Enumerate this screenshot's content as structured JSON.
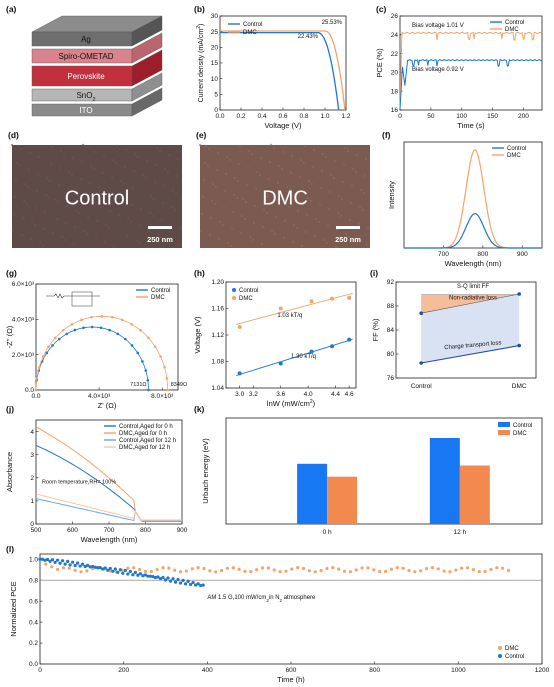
{
  "colors": {
    "control": "#1f77d0",
    "dmc": "#f4a46a",
    "urbach_control": "#1877f2",
    "urbach_dmc": "#f28a4f"
  },
  "panels": {
    "a": {
      "label": "(a)",
      "layers": [
        "Ag",
        "Spiro-OMETAD",
        "Perovskite",
        "SnO",
        "ITO"
      ],
      "sno_sub": "2"
    },
    "d": {
      "label": "(d)",
      "title": "Control",
      "scale": "250 nm"
    },
    "e": {
      "label": "(e)",
      "title": "DMC",
      "scale": "250 nm"
    }
  },
  "chart_data": [
    {
      "id": "b",
      "type": "line",
      "label": "(b)",
      "xlabel": "Voltage (V)",
      "ylabel": "Current density (mA/cm",
      "ylabel_sup": "2",
      ")": ")",
      "xlim": [
        0,
        1.2
      ],
      "ylim": [
        0,
        30
      ],
      "xticks": [
        "0.0",
        "0.2",
        "0.4",
        "0.6",
        "0.8",
        "1.0",
        "1.2"
      ],
      "yticks": [
        "0",
        "5",
        "10",
        "15",
        "20",
        "25",
        "30"
      ],
      "legend": [
        "Control",
        "DMC"
      ],
      "annotations": [
        "25.53%",
        "22.43%"
      ],
      "series": [
        {
          "name": "Control",
          "jsc": 24.7,
          "voc": 1.13,
          "knee": 0.93
        },
        {
          "name": "DMC",
          "jsc": 25.2,
          "voc": 1.19,
          "knee": 1.0
        }
      ]
    },
    {
      "id": "c",
      "type": "line",
      "label": "(c)",
      "xlabel": "Time (s)",
      "ylabel": "PCE (%)",
      "xlim": [
        0,
        230
      ],
      "ylim": [
        16,
        26
      ],
      "xticks": [
        "0",
        "50",
        "100",
        "150",
        "200"
      ],
      "yticks": [
        "16",
        "18",
        "20",
        "22",
        "24",
        "26"
      ],
      "legend": [
        "Control",
        "DMC"
      ],
      "annotations": [
        "Bias voltage 1.01 V",
        "Bias voltage 0.92 V"
      ],
      "series": [
        {
          "name": "Control",
          "steady": 21.3
        },
        {
          "name": "DMC",
          "steady": 24.2
        }
      ]
    },
    {
      "id": "f",
      "type": "line",
      "label": "(f)",
      "xlabel": "Wavelength (nm)",
      "ylabel": "Intensity",
      "xlim": [
        600,
        950
      ],
      "xticks": [
        "700",
        "800",
        "900"
      ],
      "legend": [
        "Control",
        "DMC"
      ],
      "series": [
        {
          "name": "Control",
          "peak": 780,
          "height": 0.35
        },
        {
          "name": "DMC",
          "peak": 780,
          "height": 1.0
        }
      ]
    },
    {
      "id": "g",
      "type": "scatter",
      "label": "(g)",
      "xlabel": "Z' (Ω)",
      "ylabel": "-Z'' (Ω)",
      "xlim": [
        0,
        9000
      ],
      "ylim": [
        0,
        6000
      ],
      "xticks": [
        "0.0",
        "4.0×10³",
        "8.0×10³"
      ],
      "yticks": [
        "0.0",
        "2.0×10³",
        "4.0×10³",
        "6.0×10³"
      ],
      "legend": [
        "Control",
        "DMC"
      ],
      "annotations": [
        "7131Ω",
        "8349Ω"
      ],
      "series": [
        {
          "name": "Control",
          "r": 7131
        },
        {
          "name": "DMC",
          "r": 8349
        }
      ]
    },
    {
      "id": "h",
      "type": "scatter",
      "label": "(h)",
      "xlabel": "lnW (mW/cm",
      "xlabel_sup": "2",
      "ylabel": "Voltage (V)",
      "xlim": [
        2.8,
        4.7
      ],
      "ylim": [
        1.04,
        1.2
      ],
      "xticks": [
        "3.0",
        "3.2",
        "3.6",
        "4.0",
        "4.4",
        "4.6"
      ],
      "yticks": [
        "1.04",
        "1.08",
        "1.12",
        "1.16",
        "1.20"
      ],
      "legend": [
        "Control",
        "DMC"
      ],
      "annotations": [
        "1.03 kT/q",
        "1.30 kT/q"
      ],
      "series": [
        {
          "name": "Control",
          "x": [
            3.0,
            3.6,
            4.05,
            4.35,
            4.6
          ],
          "y": [
            1.062,
            1.077,
            1.095,
            1.103,
            1.113
          ]
        },
        {
          "name": "DMC",
          "x": [
            3.0,
            3.6,
            4.05,
            4.35,
            4.6
          ],
          "y": [
            1.132,
            1.16,
            1.171,
            1.175,
            1.176
          ]
        }
      ]
    },
    {
      "id": "i",
      "type": "line",
      "label": "(i)",
      "xlabel": "",
      "ylabel": "FF (%)",
      "ylim": [
        76,
        92
      ],
      "yticks": [
        "76",
        "80",
        "84",
        "88",
        "92"
      ],
      "categories": [
        "Control",
        "DMC"
      ],
      "annotations": [
        "S-Q limit FF",
        "Non-radiative loss",
        "Charge transport loss"
      ],
      "series": [
        {
          "name": "S-Q limit FF",
          "values": [
            89.9,
            89.9
          ]
        },
        {
          "name": "upper",
          "values": [
            86.8,
            90.0
          ]
        },
        {
          "name": "measured",
          "values": [
            78.5,
            81.4
          ]
        }
      ]
    },
    {
      "id": "j",
      "type": "line",
      "label": "(j)",
      "xlabel": "Wavelength (nm)",
      "ylabel": "Absorbance",
      "xlim": [
        500,
        900
      ],
      "ylim": [
        0,
        4.5
      ],
      "xticks": [
        "500",
        "600",
        "700",
        "800",
        "900"
      ],
      "yticks": [
        "0",
        "1",
        "2",
        "3",
        "4"
      ],
      "legend": [
        "Control,Aged for 0 h",
        "DMC,Aged for 0 h",
        "Control,Aged for 12 h",
        "DMC,Aged for 12 h"
      ],
      "annotations": [
        "Room temperature,RH= 100%"
      ],
      "series": [
        {
          "name": "Control,Aged for 0 h",
          "start": 3.4
        },
        {
          "name": "DMC,Aged for 0 h",
          "start": 4.2
        },
        {
          "name": "Control,Aged for 12 h",
          "start": 1.1
        },
        {
          "name": "DMC,Aged for 12 h",
          "start": 1.3
        }
      ]
    },
    {
      "id": "k",
      "type": "bar",
      "label": "(k)",
      "xlabel": "",
      "ylabel": "Urbach energy (eV)",
      "categories": [
        "0 h",
        "12 h"
      ],
      "legend": [
        "Control",
        "DMC"
      ],
      "series": [
        {
          "name": "Control",
          "values": [
            0.7,
            1.0
          ]
        },
        {
          "name": "DMC",
          "values": [
            0.55,
            0.68
          ]
        }
      ]
    },
    {
      "id": "l",
      "type": "scatter",
      "label": "(l)",
      "xlabel": "Time (h)",
      "ylabel": "Normalized PCE",
      "xlim": [
        0,
        1200
      ],
      "ylim": [
        0,
        1.05
      ],
      "xticks": [
        "0",
        "200",
        "400",
        "600",
        "800",
        "1000",
        "1200"
      ],
      "yticks": [
        "0.0",
        "0.2",
        "0.4",
        "0.6",
        "0.8",
        "1.0"
      ],
      "legend": [
        "DMC",
        "Control"
      ],
      "annotations": [
        "AM 1.5 G,100 mW/cm",
        "2",
        "in N",
        "2",
        " atmosphere"
      ],
      "series": [
        {
          "name": "DMC",
          "end_x": 1130,
          "level": 0.9
        },
        {
          "name": "Control",
          "end_x": 390,
          "level": 0.75
        }
      ]
    }
  ]
}
